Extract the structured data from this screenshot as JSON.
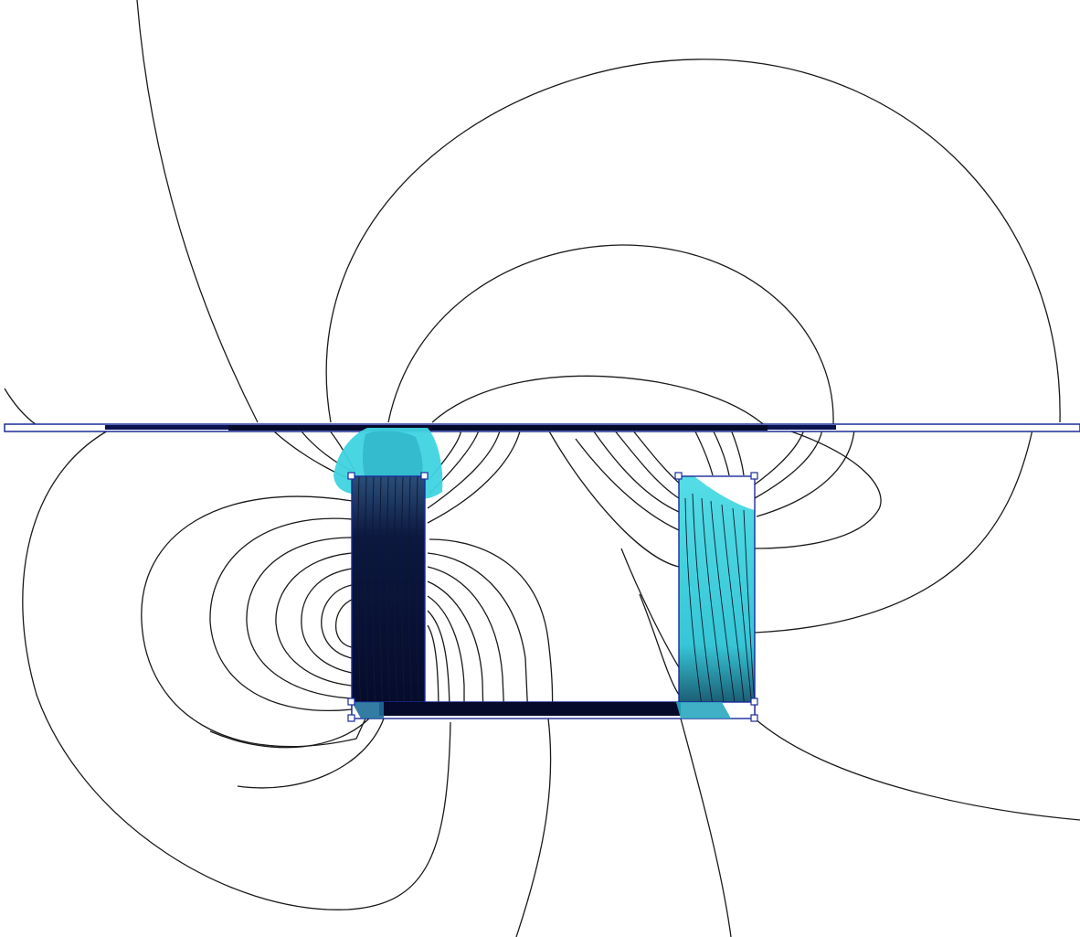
{
  "colors": {
    "background": "#ffffff",
    "field_line": "#1a1a1a",
    "geometry_edge": "#1b2b9a",
    "flux_low": "#3fd4e0",
    "flux_high": "#050a2a"
  },
  "diagram": {
    "kind": "magnetic-flux-contour-plot",
    "components": [
      "plate",
      "left-core-leg",
      "right-core-leg",
      "core-base"
    ]
  }
}
